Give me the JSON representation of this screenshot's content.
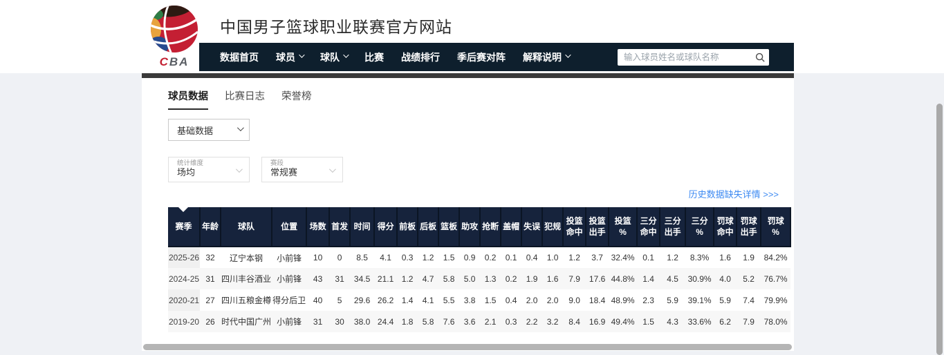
{
  "header": {
    "site_title": "中国男子篮球职业联赛官方网站",
    "logo": {
      "letter_c": "C",
      "letters_ba": "BA"
    }
  },
  "nav": {
    "items": [
      {
        "label": "数据首页",
        "has_dropdown": false
      },
      {
        "label": "球员",
        "has_dropdown": true
      },
      {
        "label": "球队",
        "has_dropdown": true
      },
      {
        "label": "比赛",
        "has_dropdown": false
      },
      {
        "label": "战绩排行",
        "has_dropdown": false
      },
      {
        "label": "季后赛对阵",
        "has_dropdown": false
      },
      {
        "label": "解释说明",
        "has_dropdown": true
      }
    ],
    "search": {
      "placeholder": "输入球员姓名或球队名称",
      "value": ""
    }
  },
  "tabs": [
    {
      "label": "球员数据",
      "active": true
    },
    {
      "label": "比赛日志",
      "active": false
    },
    {
      "label": "荣誉榜",
      "active": false
    }
  ],
  "filters": {
    "data_type": {
      "value": "基础数据"
    },
    "stat_dimension": {
      "label": "统计维度",
      "value": "场均"
    },
    "stage": {
      "label": "赛段",
      "value": "常规赛"
    }
  },
  "history_link": {
    "label": "历史数据缺失详情 >>>"
  },
  "table": {
    "columns": [
      "赛季",
      "年龄",
      "球队",
      "位置",
      "场数",
      "首发",
      "时间",
      "得分",
      "前板",
      "后板",
      "篮板",
      "助攻",
      "抢断",
      "盖帽",
      "失误",
      "犯规",
      "投篮\n命中",
      "投篮\n出手",
      "投篮\n%",
      "三分\n命中",
      "三分\n出手",
      "三分\n%",
      "罚球\n命中",
      "罚球\n出手",
      "罚球\n%"
    ],
    "rows": [
      [
        "2025-26",
        "32",
        "辽宁本钢",
        "小前锋",
        "10",
        "0",
        "8.5",
        "4.1",
        "0.3",
        "1.2",
        "1.5",
        "0.9",
        "0.2",
        "0.1",
        "0.4",
        "1.0",
        "1.2",
        "3.7",
        "32.4%",
        "0.1",
        "1.2",
        "8.3%",
        "1.6",
        "1.9",
        "84.2%"
      ],
      [
        "2024-25",
        "31",
        "四川丰谷酒业",
        "小前锋",
        "43",
        "31",
        "34.5",
        "21.1",
        "1.2",
        "4.7",
        "5.8",
        "5.0",
        "1.3",
        "0.2",
        "1.9",
        "1.6",
        "7.9",
        "17.6",
        "44.8%",
        "1.4",
        "4.5",
        "30.9%",
        "4.0",
        "5.2",
        "76.7%"
      ],
      [
        "2020-21",
        "27",
        "四川五粮金樽",
        "得分后卫",
        "40",
        "5",
        "29.6",
        "26.2",
        "1.4",
        "4.1",
        "5.5",
        "3.8",
        "1.5",
        "0.4",
        "2.0",
        "2.0",
        "9.0",
        "18.4",
        "48.9%",
        "2.3",
        "5.9",
        "39.1%",
        "5.9",
        "7.4",
        "79.9%"
      ],
      [
        "2019-20",
        "26",
        "时代中国广州",
        "小前锋",
        "31",
        "30",
        "38.0",
        "24.4",
        "1.8",
        "5.8",
        "7.6",
        "3.6",
        "2.1",
        "0.3",
        "2.2",
        "3.2",
        "8.4",
        "16.9",
        "49.4%",
        "1.5",
        "4.3",
        "33.6%",
        "6.2",
        "7.9",
        "78.0%"
      ]
    ]
  },
  "colors": {
    "nav_bg": "#0e1f2d",
    "table_header_bg": "#16233c",
    "link_blue": "#3d8af2",
    "page_bg": "#eff1f5",
    "accent_red": "#c32032"
  }
}
